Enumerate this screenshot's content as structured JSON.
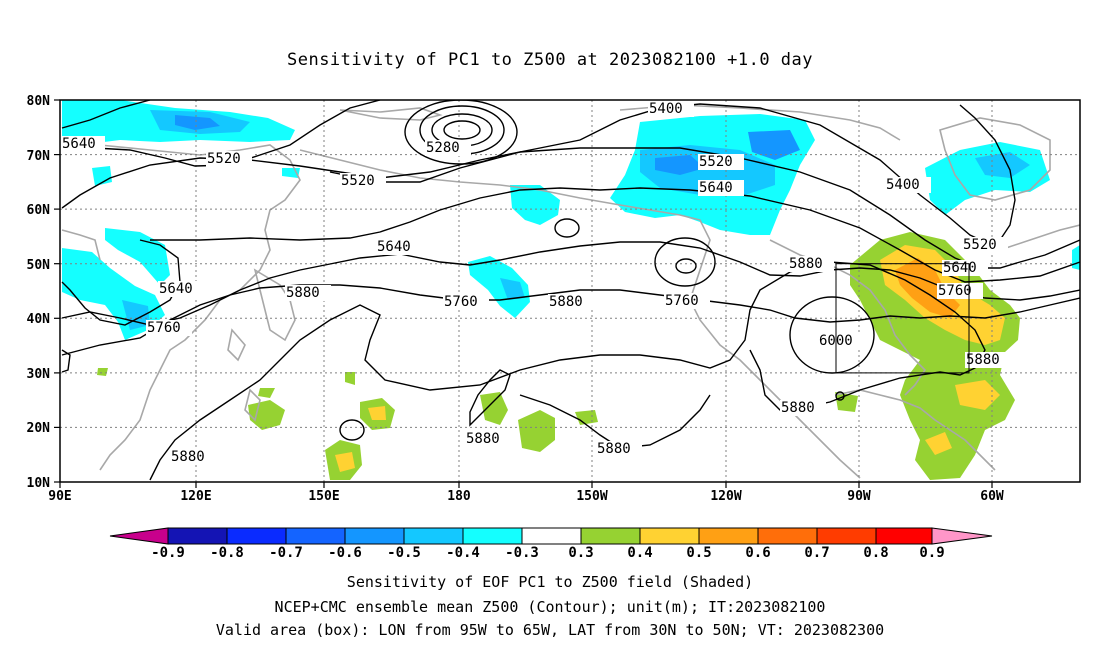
{
  "title": "Sensitivity of PC1 to Z500 at 2023082100 +1.0 day",
  "footer": [
    "Sensitivity of EOF PC1 to Z500 field (Shaded)",
    "NCEP+CMC ensemble mean Z500 (Contour); unit(m); IT:2023082100",
    "Valid area (box): LON from 95W to 65W, LAT from 30N to 50N; VT: 2023082300"
  ],
  "lat_ticks": [
    "80N",
    "70N",
    "60N",
    "50N",
    "40N",
    "30N",
    "20N",
    "10N"
  ],
  "lon_ticks": [
    "90E",
    "120E",
    "150E",
    "180",
    "150W",
    "120W",
    "90W",
    "60W"
  ],
  "contour_labels": [
    "5640",
    "5520",
    "5520",
    "5280",
    "5400",
    "5520",
    "5640",
    "5400",
    "5520",
    "5640",
    "5640",
    "5640",
    "5760",
    "5880",
    "5760",
    "5880",
    "5760",
    "5880",
    "6000",
    "5760",
    "5880",
    "5880",
    "5880",
    "5880",
    "5880"
  ],
  "colorbar": {
    "labels": [
      "-0.9",
      "-0.8",
      "-0.7",
      "-0.6",
      "-0.5",
      "-0.4",
      "-0.3",
      "0.3",
      "0.4",
      "0.5",
      "0.6",
      "0.7",
      "0.8",
      "0.9"
    ],
    "colors": [
      "#1414b4",
      "#0a2bff",
      "#1464ff",
      "#1496ff",
      "#14c8ff",
      "#14ffff",
      "#ffffff",
      "#96d232",
      "#ffd232",
      "#ffa014",
      "#ff6e0a",
      "#ff3c00",
      "#ff0000"
    ],
    "low_arrow_color": "#c8008c",
    "high_arrow_color": "#ff96c8"
  },
  "shading_colors": {
    "cyan": "#14ffff",
    "sky": "#14c8ff",
    "blue": "#1496ff",
    "deep_blue": "#1464ff",
    "green": "#96d232",
    "yellow": "#ffd232",
    "orange": "#ffa014"
  }
}
